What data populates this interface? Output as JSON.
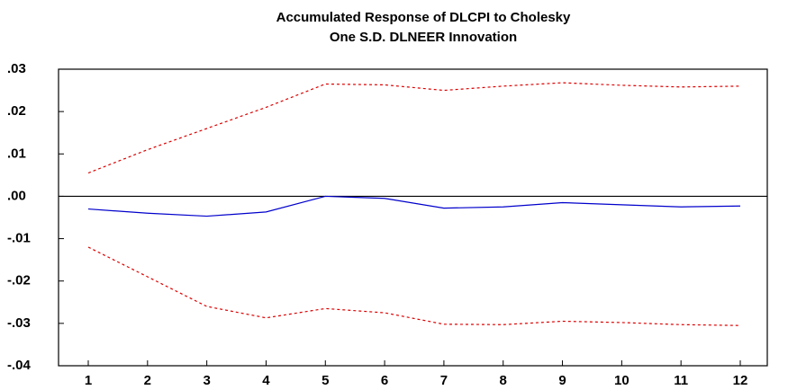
{
  "chart_data": {
    "type": "line",
    "title": [
      "Accumulated Response of DLCPI to Cholesky",
      "One S.D. DLNEER Innovation"
    ],
    "categories": [
      "1",
      "2",
      "3",
      "4",
      "5",
      "6",
      "7",
      "8",
      "9",
      "10",
      "11",
      "12"
    ],
    "series": [
      {
        "color": "#0000cc",
        "dash": false,
        "values": [
          -0.003,
          -0.004,
          -0.0047,
          -0.0037,
          0.0,
          -0.0005,
          -0.0028,
          -0.0025,
          -0.0015,
          -0.002,
          -0.0025,
          -0.0023
        ]
      },
      {
        "color": "#dd0000",
        "dash": true,
        "values": [
          0.0055,
          0.011,
          0.016,
          0.021,
          0.0265,
          0.0263,
          0.025,
          0.026,
          0.0268,
          0.0262,
          0.0258,
          0.026
        ]
      },
      {
        "color": "#dd0000",
        "dash": true,
        "values": [
          -0.012,
          -0.019,
          -0.026,
          -0.0287,
          -0.0265,
          -0.0275,
          -0.0302,
          -0.0303,
          -0.0295,
          -0.0298,
          -0.0303,
          -0.0305
        ]
      }
    ],
    "ylim": [
      -0.04,
      0.03
    ],
    "yticks": [
      {
        "value": -0.04,
        "label": "-.04"
      },
      {
        "value": -0.03,
        "label": "-.03"
      },
      {
        "value": -0.02,
        "label": "-.02"
      },
      {
        "value": -0.01,
        "label": "-.01"
      },
      {
        "value": 0,
        "label": ".00"
      },
      {
        "value": 0.01,
        "label": ".01"
      },
      {
        "value": 0.02,
        "label": ".02"
      },
      {
        "value": 0.03,
        "label": ".03"
      }
    ],
    "zero_line": true
  }
}
